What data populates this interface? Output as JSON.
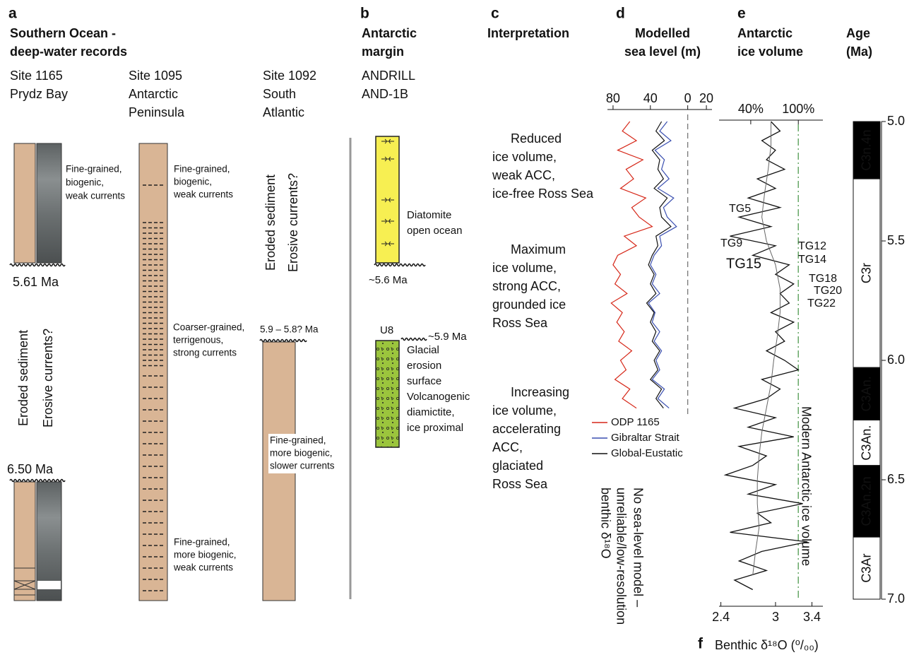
{
  "panel_a": {
    "label": "a",
    "title": [
      "Southern Ocean -",
      "deep-water records"
    ],
    "sites": [
      [
        "Site 1165",
        "Prydz Bay"
      ],
      [
        "Site 1095",
        "Antarctic",
        "Peninsula"
      ],
      [
        "Site 1092",
        "South",
        "Atlantic"
      ]
    ],
    "site_1165": {
      "top_age": "5.61 Ma",
      "gap": [
        "Eroded sediment",
        "Erosive currents?"
      ],
      "bottom_age": "6.50 Ma",
      "note": [
        "Fine-grained,",
        "biogenic,",
        "weak currents"
      ]
    },
    "site_1095": {
      "notes": [
        [
          "Fine-grained,",
          "biogenic,",
          "weak currents"
        ],
        [
          "Coarser-grained,",
          "terrigenous,",
          "strong currents"
        ],
        [
          "Fine-grained,",
          "more biogenic,",
          "weak currents"
        ]
      ]
    },
    "site_1092": {
      "gap": [
        "Eroded sediment",
        "Erosive currents?"
      ],
      "top_age": "5.9 – 5.8? Ma",
      "note": [
        "Fine-grained,",
        "more biogenic,",
        "slower currents"
      ]
    }
  },
  "panel_b": {
    "label": "b",
    "title": [
      "Antarctic",
      "margin"
    ],
    "site": [
      "ANDRILL",
      "AND-1B"
    ],
    "upper_unit": [
      "Diatomite",
      "open ocean"
    ],
    "upper_age": "~5.6 Ma",
    "core": "U8",
    "lower_age": "~5.9 Ma",
    "lower_unit": [
      "Glacial",
      "erosion",
      "surface",
      "Volcanogenic",
      "diamictite,",
      "ice proximal"
    ]
  },
  "panel_c": {
    "label": "c",
    "title": "Interpretation",
    "phases": [
      [
        "Reduced",
        "ice volume,",
        "weak ACC,",
        "ice-free Ross Sea"
      ],
      [
        "Maximum",
        "ice volume,",
        "strong ACC,",
        "grounded ice",
        "Ross Sea"
      ],
      [
        "Increasing",
        "ice volume,",
        "accelerating",
        "ACC,",
        "glaciated",
        "Ross Sea"
      ]
    ]
  },
  "chart_data": [
    {
      "type": "line",
      "label": "d",
      "title": [
        "Modelled",
        "sea level (m)"
      ],
      "note": [
        "No sea-level model –",
        "unreliable/low-resolution",
        "benthic δ¹⁸O"
      ],
      "xlim": [
        86,
        -26
      ],
      "xticks": [
        80,
        40,
        0,
        {
          "value": -20,
          "label": "20"
        }
      ],
      "ylim": [
        5,
        7
      ],
      "reference_value": 0,
      "x": [
        5.0,
        5.04,
        5.08,
        5.12,
        5.16,
        5.2,
        5.24,
        5.28,
        5.32,
        5.36,
        5.4,
        5.44,
        5.48,
        5.52,
        5.56,
        5.6,
        5.64,
        5.68,
        5.72,
        5.76,
        5.8,
        5.84,
        5.88,
        5.92,
        5.96,
        6.0,
        6.04,
        6.08,
        6.12,
        6.16,
        6.2
      ],
      "series": [
        {
          "name": "ODP 1165",
          "color": "#d62718",
          "values": [
            62,
            70,
            55,
            75,
            48,
            66,
            58,
            72,
            45,
            60,
            52,
            38,
            68,
            55,
            75,
            80,
            72,
            78,
            65,
            82,
            70,
            76,
            68,
            74,
            60,
            72,
            66,
            78,
            62,
            70,
            55
          ]
        },
        {
          "name": "Gibraltar Strait",
          "color": "#3a4fb0",
          "values": [
            22,
            30,
            18,
            35,
            25,
            28,
            20,
            32,
            15,
            26,
            22,
            12,
            30,
            28,
            36,
            40,
            34,
            38,
            30,
            42,
            35,
            38,
            30,
            36,
            28,
            34,
            30,
            38,
            25,
            32,
            20
          ]
        },
        {
          "name": "Global-Eustatic",
          "color": "#111111",
          "values": [
            28,
            34,
            25,
            38,
            30,
            32,
            26,
            36,
            22,
            30,
            28,
            18,
            34,
            32,
            38,
            42,
            36,
            40,
            34,
            44,
            36,
            40,
            34,
            38,
            30,
            36,
            32,
            40,
            28,
            34,
            26
          ]
        }
      ]
    },
    {
      "type": "line",
      "label": "e",
      "title": [
        "Antarctic",
        "ice volume"
      ],
      "xlabel_panel": "f",
      "xlabel": "Benthic δ¹⁸O (⁰/₀₀)",
      "xlim": [
        2.38,
        3.52
      ],
      "xticks": [
        2.4,
        3,
        3.4
      ],
      "x2lim": [
        0,
        131
      ],
      "x2ticks": [
        {
          "value": 40,
          "label": "40%"
        },
        {
          "value": 100,
          "label": "100%"
        }
      ],
      "ylim": [
        5,
        7
      ],
      "reference_value": 3.25,
      "reference_label": "Modern Antarctic ice volume",
      "series": [
        {
          "x": [
            5.0,
            5.04,
            5.08,
            5.12,
            5.16,
            5.2,
            5.24,
            5.28,
            5.32,
            5.36,
            5.4,
            5.44,
            5.48,
            5.52,
            5.56,
            5.6,
            5.64,
            5.68,
            5.72,
            5.76,
            5.8,
            5.84,
            5.88,
            5.92,
            5.96,
            6.0,
            6.04,
            6.08,
            6.12,
            6.16,
            6.2,
            6.24,
            6.28,
            6.32,
            6.36,
            6.4,
            6.44,
            6.48,
            6.52,
            6.56,
            6.6,
            6.64,
            6.68,
            6.72,
            6.76,
            6.8,
            6.84,
            6.88,
            6.92,
            6.96
          ],
          "color": "#111111",
          "values": [
            2.95,
            3.05,
            2.85,
            3.0,
            2.9,
            3.1,
            2.8,
            3.0,
            2.7,
            3.05,
            2.6,
            2.95,
            2.5,
            3.0,
            2.75,
            3.15,
            3.0,
            3.2,
            3.05,
            3.15,
            2.95,
            3.2,
            3.0,
            3.1,
            2.9,
            3.1,
            3.25,
            2.85,
            3.05,
            2.9,
            2.55,
            3.0,
            2.7,
            3.2,
            2.6,
            2.9,
            2.75,
            2.45,
            3.0,
            2.7,
            3.3,
            2.8,
            2.95,
            2.5,
            3.35,
            2.85,
            2.6,
            2.9,
            2.55,
            2.75
          ]
        },
        {
          "x": [
            5.0,
            5.1,
            5.2,
            5.3,
            5.4,
            5.5,
            5.6,
            5.7,
            5.8,
            5.9,
            6.0,
            6.1,
            6.2,
            6.3,
            6.4,
            6.5,
            6.6,
            6.7,
            6.8,
            6.9
          ],
          "color": "#666666",
          "values": [
            2.95,
            2.95,
            2.92,
            2.88,
            2.85,
            2.9,
            3.0,
            3.05,
            3.05,
            3.02,
            2.98,
            2.95,
            2.9,
            2.85,
            2.82,
            2.8,
            2.8,
            2.82,
            2.78,
            2.75
          ]
        }
      ],
      "annotations": [
        {
          "text": "TG5",
          "color": "#111111"
        },
        {
          "text": "TG9",
          "color": "#111111"
        },
        {
          "text": "TG12",
          "color": "#3d7a3d"
        },
        {
          "text": "TG14",
          "color": "#3d7a3d"
        },
        {
          "text": "TG15",
          "color": "#d62718"
        },
        {
          "text": "TG18",
          "color": "#111111"
        },
        {
          "text": "TG20",
          "color": "#111111"
        },
        {
          "text": "TG22",
          "color": "#111111"
        }
      ]
    }
  ],
  "age_axis": {
    "title": [
      "Age",
      "(Ma)"
    ],
    "ylim": [
      5,
      7
    ],
    "yticks": [
      {
        "value": 5,
        "label": "5.0"
      },
      {
        "value": 5.5,
        "label": "5.5"
      },
      {
        "value": 6,
        "label": "6.0"
      },
      {
        "value": 6.5,
        "label": "6.5"
      },
      {
        "value": 7,
        "label": "7.0"
      }
    ],
    "chrons": [
      {
        "label": "C3n.4n",
        "start": 5.0,
        "end": 5.24,
        "color": "#000000"
      },
      {
        "label": "C3r",
        "start": 5.24,
        "end": 6.03,
        "color": "#ffffff"
      },
      {
        "label": "C3An.",
        "start": 6.03,
        "end": 6.25,
        "color": "#000000"
      },
      {
        "label": "C3An.",
        "start": 6.25,
        "end": 6.44,
        "color": "#ffffff"
      },
      {
        "label": "C3An.2n",
        "start": 6.44,
        "end": 6.74,
        "color": "#000000"
      },
      {
        "label": "C3Ar",
        "start": 6.74,
        "end": 7.0,
        "color": "#ffffff"
      }
    ]
  }
}
